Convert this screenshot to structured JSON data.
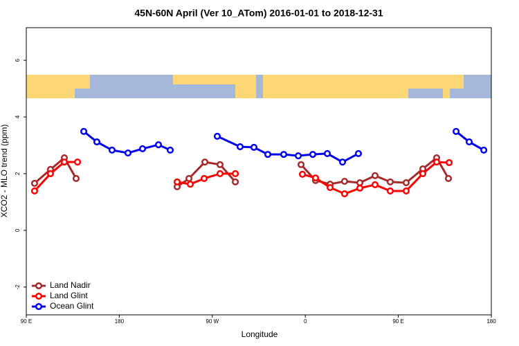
{
  "chart_data": {
    "type": "line",
    "title": "45N-60N April (Ver 10_ATom)   2016-01-01 to 2018-12-31",
    "x_label": "Longitude",
    "y_label": "XCO2 - MLO trend (ppm)",
    "xlim": [
      90,
      540
    ],
    "ylim": [
      -2.98,
      7.15
    ],
    "xticks": [
      {
        "value": 90,
        "label": "90 E"
      },
      180,
      {
        "value": 270,
        "label": "90 W"
      },
      {
        "value": 360,
        "label": "0"
      },
      {
        "value": 450,
        "label": "90 E"
      },
      {
        "value": 540,
        "label": "180"
      }
    ],
    "yticks": [
      -2,
      0,
      2,
      4,
      6
    ],
    "legend": "bottomleft",
    "series": [
      {
        "name": "Land Nadir",
        "color": "#a52a2a",
        "x": [
          98.0,
          113.4,
          126.8,
          138.2,
          null,
          236.0,
          247.4,
          262.8,
          277.5,
          292.3,
          null,
          355.9,
          369.9,
          384.0,
          398.0,
          412.8,
          427.5,
          442.2,
          457.6,
          473.7,
          487.1,
          498.5
        ],
        "values": [
          1.66,
          2.15,
          2.56,
          1.83,
          null,
          1.54,
          1.83,
          2.41,
          2.32,
          1.71,
          null,
          2.32,
          1.76,
          1.63,
          1.73,
          1.68,
          1.93,
          1.71,
          1.68,
          2.17,
          2.56,
          1.83
        ]
      },
      {
        "name": "Land Glint",
        "color": "#ff0000",
        "x": [
          98.0,
          113.4,
          126.8,
          139.6,
          null,
          236.0,
          248.7,
          262.1,
          277.5,
          292.3,
          null,
          357.2,
          369.9,
          384.0,
          398.0,
          412.8,
          427.5,
          442.2,
          457.6,
          473.7,
          487.1,
          499.2
        ],
        "values": [
          1.39,
          2.0,
          2.41,
          2.41,
          null,
          1.71,
          1.63,
          1.83,
          2.0,
          2.0,
          null,
          1.98,
          1.85,
          1.51,
          1.29,
          1.49,
          1.61,
          1.39,
          1.39,
          2.0,
          2.41,
          2.39
        ]
      },
      {
        "name": "Ocean Glint",
        "color": "#0000ee",
        "x": [
          145.6,
          158.3,
          173.0,
          188.4,
          202.5,
          217.9,
          229.3,
          null,
          274.8,
          296.9,
          310.3,
          323.7,
          339.1,
          353.2,
          367.2,
          381.3,
          396.0,
          411.4,
          null,
          505.9,
          518.6,
          532.7
        ],
        "values": [
          3.49,
          3.12,
          2.83,
          2.73,
          2.88,
          3.02,
          2.83,
          null,
          3.32,
          2.95,
          2.93,
          2.68,
          2.68,
          2.63,
          2.68,
          2.71,
          2.41,
          2.71,
          null,
          3.49,
          3.12,
          2.83
        ]
      }
    ]
  }
}
